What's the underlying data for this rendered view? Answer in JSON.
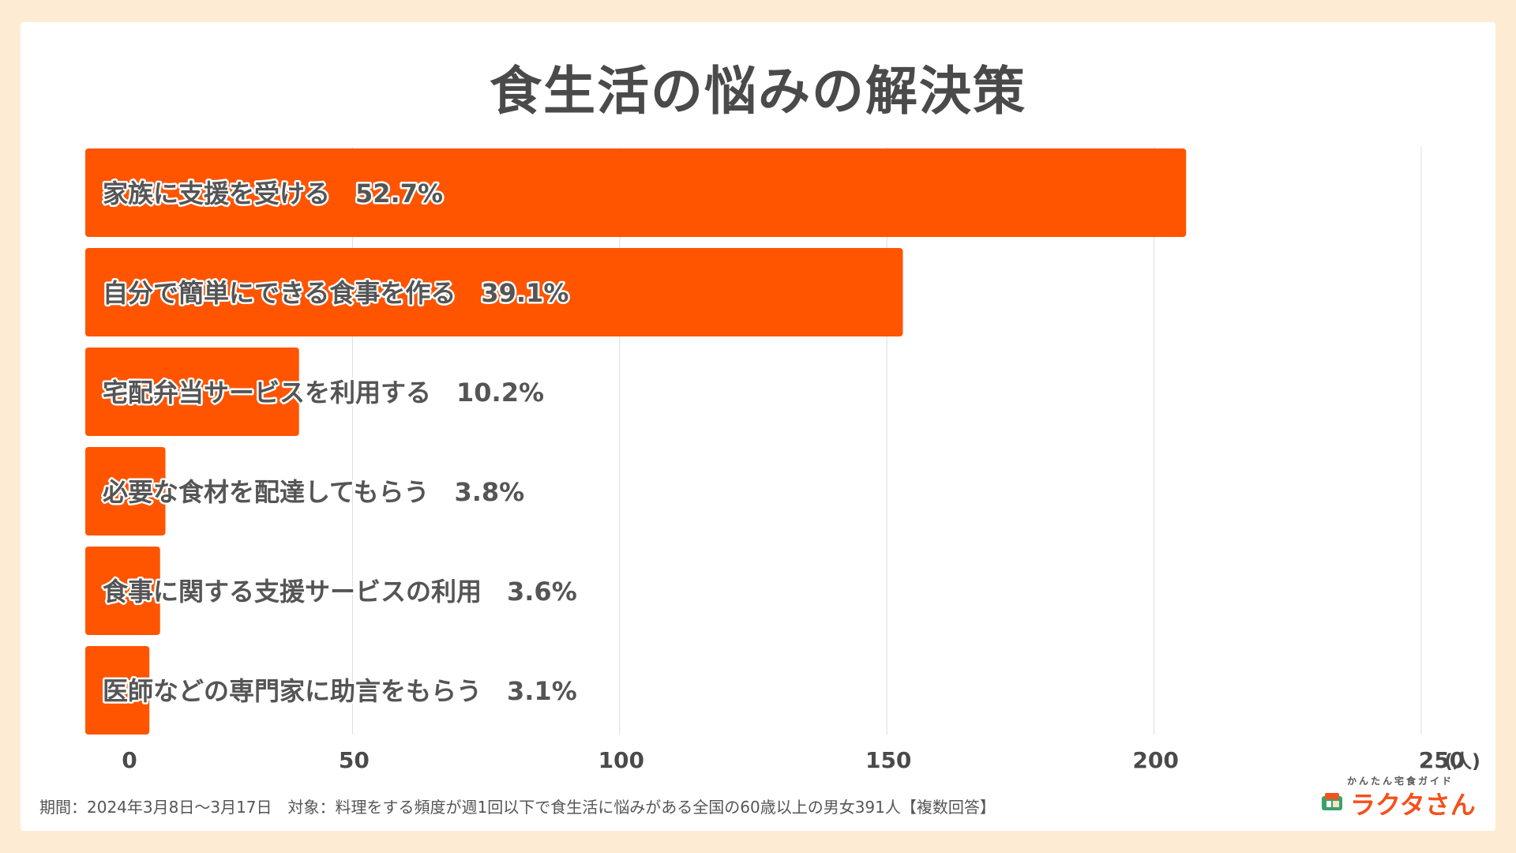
{
  "title": "食生活の悩みの解決策",
  "footnote": "期間：2024年3月8日〜3月17日　対象：料理をする頻度が週1回以下で食生活に悩みがある全国の60歳以上の男女391人【複数回答】",
  "logo": {
    "sub": "かんたん宅食ガイド",
    "main": "ラクタさん"
  },
  "colors": {
    "bar": "#ff5500",
    "text": "#4a4a4a",
    "grid": "#dddddd",
    "background": "#fdebd3"
  },
  "chart_data": {
    "type": "bar",
    "orientation": "horizontal",
    "title": "食生活の悩みの解決策",
    "unit": "(人)",
    "xlim": [
      0,
      250
    ],
    "xticks": [
      0,
      50,
      100,
      150,
      200,
      250
    ],
    "grid": true,
    "categories": [
      "家族に支援を受ける",
      "自分で簡単にできる食事を作る",
      "宅配弁当サービスを利用する",
      "必要な食材を配達してもらう",
      "食事に関する支援サービスの利用",
      "医師などの専門家に助言をもらう"
    ],
    "percent_labels": [
      "52.7%",
      "39.1%",
      "10.2%",
      "3.8%",
      "3.6%",
      "3.1%"
    ],
    "values": [
      206,
      153,
      40,
      15,
      14,
      12
    ]
  }
}
